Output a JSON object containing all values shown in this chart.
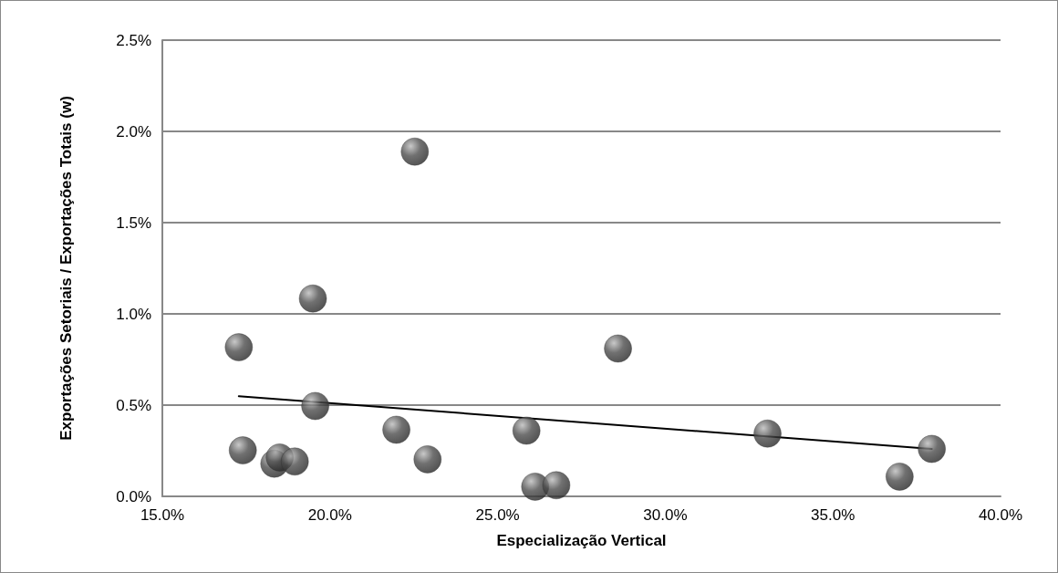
{
  "chart_data": {
    "type": "scatter",
    "xlabel": "Especialização Vertical",
    "ylabel": "Exportações Setoriais / Exportações Totais (w)",
    "xlim": [
      15,
      40
    ],
    "xticks": [
      {
        "value": 15,
        "label": "15.0%"
      },
      {
        "value": 20,
        "label": "20.0%"
      },
      {
        "value": 25,
        "label": "25.0%"
      },
      {
        "value": 30,
        "label": "30.0%"
      },
      {
        "value": 35,
        "label": "35.0%"
      },
      {
        "value": 40,
        "label": "40.0%"
      }
    ],
    "ylim": [
      0,
      2.5
    ],
    "yticks": [
      {
        "value": 0,
        "label": "0.0%"
      },
      {
        "value": 0.5,
        "label": "0.5%"
      },
      {
        "value": 1,
        "label": "1.0%"
      },
      {
        "value": 1.5,
        "label": "1.5%"
      },
      {
        "value": 2,
        "label": "2.0%"
      },
      {
        "value": 2.5,
        "label": "2.5%"
      }
    ],
    "grid": "y",
    "marker": "circle",
    "series": [
      {
        "color": "#4d4d4d",
        "x": [
          17.28,
          17.4,
          18.34,
          18.5,
          18.95,
          19.49,
          19.56,
          21.98,
          22.53,
          22.91,
          25.86,
          26.12,
          26.75,
          28.59,
          33.05,
          36.99,
          37.95
        ],
        "values": [
          0.817,
          0.252,
          0.179,
          0.213,
          0.191,
          1.084,
          0.495,
          0.365,
          1.889,
          0.203,
          0.36,
          0.053,
          0.061,
          0.81,
          0.344,
          0.108,
          0.26
        ]
      },
      {
        "type": "line",
        "color": "#000000",
        "marker": "none",
        "x": [
          17.28,
          37.95
        ],
        "values": [
          0.549,
          0.26
        ]
      }
    ]
  }
}
